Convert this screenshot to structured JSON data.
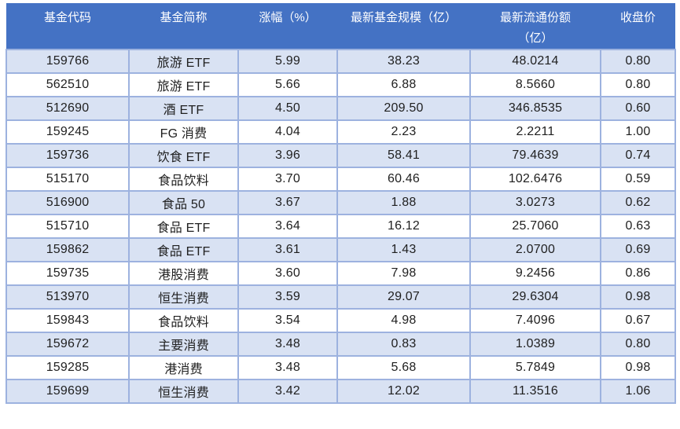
{
  "table": {
    "columns": [
      {
        "id": "fund-code",
        "lines": [
          "基金代码"
        ]
      },
      {
        "id": "fund-name",
        "lines": [
          "基金简称"
        ]
      },
      {
        "id": "change-percent",
        "lines": [
          "涨幅（%）"
        ]
      },
      {
        "id": "latest-fund-size",
        "lines": [
          "最新基金规模（亿）"
        ]
      },
      {
        "id": "latest-shares",
        "lines": [
          "最新流通份额",
          "（亿）"
        ]
      },
      {
        "id": "closing-price",
        "lines": [
          "收盘价"
        ]
      }
    ],
    "rows": [
      [
        "159766",
        "旅游 ETF",
        "5.99",
        "38.23",
        "48.0214",
        "0.80"
      ],
      [
        "562510",
        "旅游 ETF",
        "5.66",
        "6.88",
        "8.5660",
        "0.80"
      ],
      [
        "512690",
        "酒 ETF",
        "4.50",
        "209.50",
        "346.8535",
        "0.60"
      ],
      [
        "159245",
        "FG 消费",
        "4.04",
        "2.23",
        "2.2211",
        "1.00"
      ],
      [
        "159736",
        "饮食 ETF",
        "3.96",
        "58.41",
        "79.4639",
        "0.74"
      ],
      [
        "515170",
        "食品饮料",
        "3.70",
        "60.46",
        "102.6476",
        "0.59"
      ],
      [
        "516900",
        "食品 50",
        "3.67",
        "1.88",
        "3.0273",
        "0.62"
      ],
      [
        "515710",
        "食品 ETF",
        "3.64",
        "16.12",
        "25.7060",
        "0.63"
      ],
      [
        "159862",
        "食品 ETF",
        "3.61",
        "1.43",
        "2.0700",
        "0.69"
      ],
      [
        "159735",
        "港股消费",
        "3.60",
        "7.98",
        "9.2456",
        "0.86"
      ],
      [
        "513970",
        "恒生消费",
        "3.59",
        "29.07",
        "29.6304",
        "0.98"
      ],
      [
        "159843",
        "食品饮料",
        "3.54",
        "4.98",
        "7.4096",
        "0.67"
      ],
      [
        "159672",
        "主要消费",
        "3.48",
        "0.83",
        "1.0389",
        "0.80"
      ],
      [
        "159285",
        "港消费",
        "3.48",
        "5.68",
        "5.7849",
        "0.98"
      ],
      [
        "159699",
        "恒生消费",
        "3.42",
        "12.02",
        "11.3516",
        "1.06"
      ]
    ],
    "colors": {
      "header_bg": "#4472C4",
      "header_text": "#FFFFFF",
      "row_alt_bg": "#D9E2F3",
      "row_bg": "#FFFFFF",
      "border": "#9DB2DF",
      "body_text": "#1F1F1F"
    }
  }
}
